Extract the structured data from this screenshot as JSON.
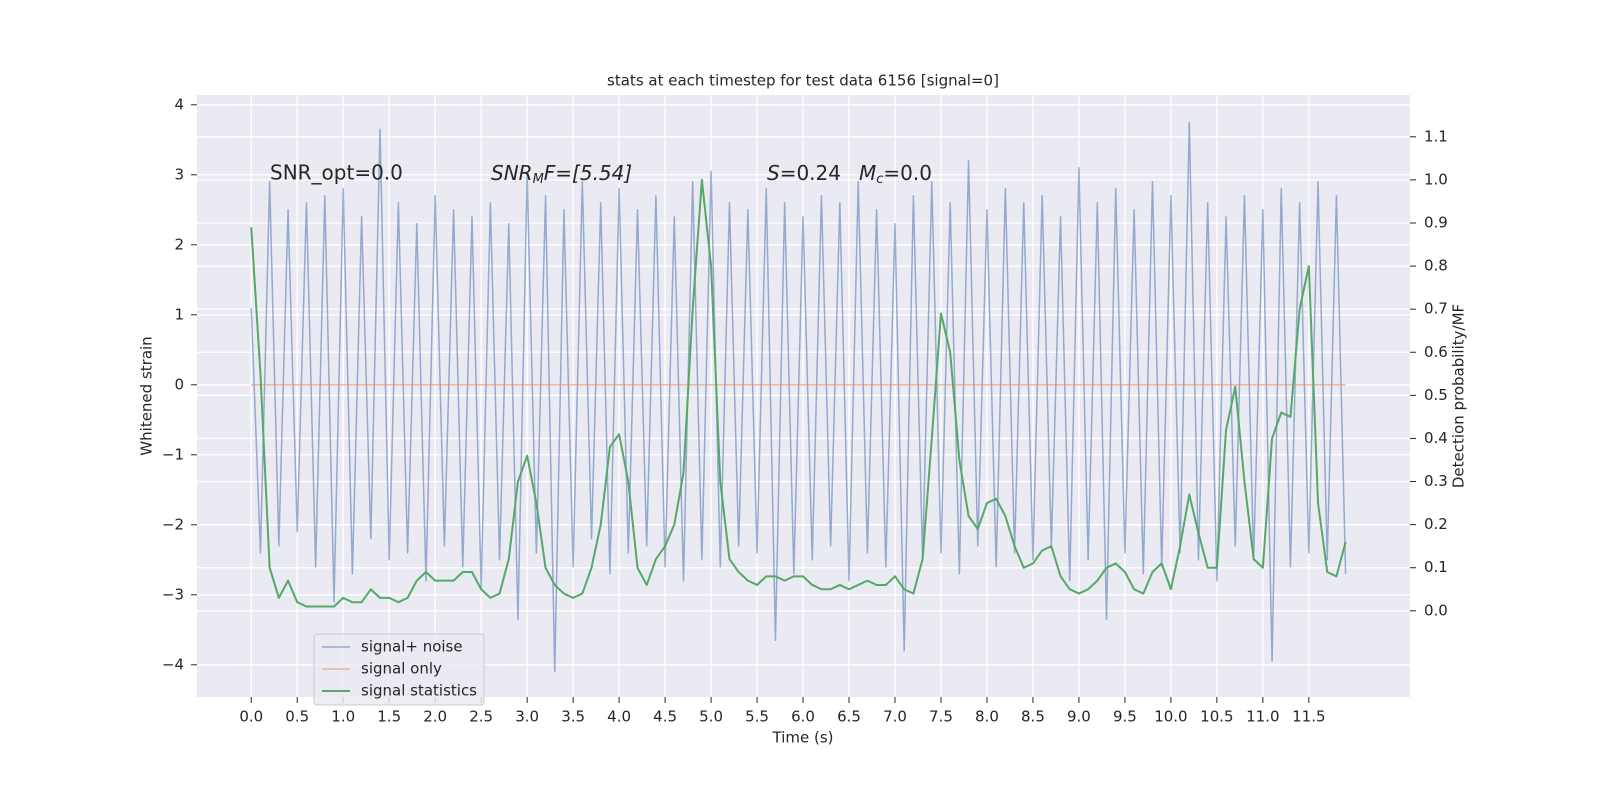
{
  "chart_data": {
    "type": "line",
    "title": "stats at each timestep for test data 6156 [signal=0]",
    "xlabel": "Time (s)",
    "ylabel": "Whitened strain",
    "y2label": "Detection probability/MF",
    "xlim": [
      -0.59,
      12.6
    ],
    "ylim": [
      -4.46,
      4.14
    ],
    "y2lim": [
      -0.2,
      1.197
    ],
    "xticks": [
      {
        "value": 0,
        "label": "0.0"
      },
      0.5,
      {
        "value": 1,
        "label": "1.0"
      },
      1.5,
      {
        "value": 2,
        "label": "2.0"
      },
      2.5,
      {
        "value": 3,
        "label": "3.0"
      },
      3.5,
      {
        "value": 4,
        "label": "4.0"
      },
      4.5,
      {
        "value": 5,
        "label": "5.0"
      },
      5.5,
      {
        "value": 6,
        "label": "6.0"
      },
      6.5,
      {
        "value": 7,
        "label": "7.0"
      },
      7.5,
      {
        "value": 8,
        "label": "8.0"
      },
      8.5,
      {
        "value": 9,
        "label": "9.0"
      },
      9.5,
      {
        "value": 10,
        "label": "10.0"
      },
      10.5,
      {
        "value": 11,
        "label": "11.0"
      },
      11.5
    ],
    "yticks": [
      {
        "value": -4,
        "label": "−4"
      },
      {
        "value": -3,
        "label": "−3"
      },
      {
        "value": -2,
        "label": "−2"
      },
      {
        "value": -1,
        "label": "−1"
      },
      0,
      1,
      2,
      3,
      4
    ],
    "y2ticks": [
      {
        "value": 0,
        "label": "0.0"
      },
      0.1,
      0.2,
      0.3,
      0.4,
      0.5,
      0.6,
      0.7,
      0.8,
      0.9,
      {
        "value": 1,
        "label": "1.0"
      },
      1.1
    ],
    "grid": true,
    "legend_loc": "lower left",
    "annotations": [
      {
        "text": "SNR_opt=0.0"
      },
      {
        "text": "SNR",
        "sub": "M",
        "rest": "F=[5.54]"
      },
      {
        "text": "S",
        "rest": "=0.24",
        "text2": "M",
        "sub": "c",
        "rest2": "=0.0"
      }
    ],
    "series": [
      {
        "name": "signal+ noise",
        "color": "#4c72b0",
        "axis": "y",
        "x": [
          0,
          0.1,
          0.2,
          0.3,
          0.4,
          0.5,
          0.6,
          0.7,
          0.8,
          0.9,
          1,
          1.1,
          1.2,
          1.3,
          1.4,
          1.5,
          1.6,
          1.7,
          1.8,
          1.9,
          2,
          2.1,
          2.2,
          2.3,
          2.4,
          2.5,
          2.6,
          2.7,
          2.8,
          2.9,
          3,
          3.1,
          3.2,
          3.3,
          3.4,
          3.5,
          3.6,
          3.7,
          3.8,
          3.9,
          4,
          4.1,
          4.2,
          4.3,
          4.4,
          4.5,
          4.6,
          4.7,
          4.8,
          4.9,
          5,
          5.1,
          5.2,
          5.3,
          5.4,
          5.5,
          5.6,
          5.7,
          5.8,
          5.9,
          6,
          6.1,
          6.2,
          6.3,
          6.4,
          6.5,
          6.6,
          6.7,
          6.8,
          6.9,
          7,
          7.1,
          7.2,
          7.3,
          7.4,
          7.5,
          7.6,
          7.7,
          7.8,
          7.9,
          8,
          8.1,
          8.2,
          8.3,
          8.4,
          8.5,
          8.6,
          8.7,
          8.8,
          8.9,
          9,
          9.1,
          9.2,
          9.3,
          9.4,
          9.5,
          9.6,
          9.7,
          9.8,
          9.9,
          10,
          10.1,
          10.2,
          10.3,
          10.4,
          10.5,
          10.6,
          10.7,
          10.8,
          10.9,
          11,
          11.1,
          11.2,
          11.3,
          11.4,
          11.5,
          11.6,
          11.7,
          11.8,
          11.9
        ],
        "values": [
          1.1,
          -2.4,
          2.9,
          -2.3,
          2.5,
          -2.1,
          2.6,
          -2.6,
          2.7,
          -3.1,
          2.8,
          -2.7,
          2.4,
          -2.2,
          3.65,
          -2.5,
          2.6,
          -2.4,
          2.3,
          -2.8,
          2.7,
          -2.3,
          2.5,
          -2.6,
          2.4,
          -2.9,
          2.6,
          -2.5,
          2.3,
          -3.35,
          3.0,
          -2.4,
          2.7,
          -4.1,
          2.5,
          -2.6,
          2.9,
          -2.2,
          2.6,
          -2.7,
          2.8,
          -2.4,
          2.5,
          -2.3,
          2.7,
          -2.6,
          2.4,
          -2.8,
          2.9,
          -2.5,
          3.05,
          -2.6,
          2.6,
          -2.3,
          2.5,
          -2.4,
          2.8,
          -3.65,
          2.6,
          -2.7,
          2.4,
          -2.5,
          2.7,
          -2.3,
          2.6,
          -2.8,
          2.9,
          -2.4,
          2.5,
          -2.6,
          2.3,
          -3.8,
          2.7,
          -2.5,
          2.9,
          -2.4,
          2.6,
          -2.7,
          3.2,
          -2.3,
          2.5,
          -2.6,
          2.8,
          -2.4,
          2.6,
          -2.5,
          2.7,
          -2.3,
          2.4,
          -2.8,
          3.1,
          -2.5,
          2.6,
          -3.35,
          2.8,
          -2.4,
          2.5,
          -2.7,
          2.9,
          -2.6,
          2.7,
          -2.4,
          3.75,
          -2.5,
          2.6,
          -2.8,
          2.4,
          -2.3,
          2.7,
          -2.5,
          2.5,
          -3.95,
          2.8,
          -2.6,
          2.6,
          -2.4,
          2.9,
          -2.5,
          2.7,
          -2.7
        ]
      },
      {
        "name": "signal only",
        "color": "#dd8452",
        "axis": "y",
        "x": [
          0,
          11.9
        ],
        "values": [
          0,
          0
        ]
      },
      {
        "name": "signal statistics",
        "color": "#55a868",
        "axis": "y2",
        "x": [
          0,
          0.1,
          0.2,
          0.3,
          0.4,
          0.5,
          0.6,
          0.7,
          0.8,
          0.9,
          1,
          1.1,
          1.2,
          1.3,
          1.4,
          1.5,
          1.6,
          1.7,
          1.8,
          1.9,
          2,
          2.1,
          2.2,
          2.3,
          2.4,
          2.5,
          2.6,
          2.7,
          2.8,
          2.9,
          3,
          3.1,
          3.2,
          3.3,
          3.4,
          3.5,
          3.6,
          3.7,
          3.8,
          3.9,
          4,
          4.1,
          4.2,
          4.3,
          4.4,
          4.5,
          4.6,
          4.7,
          4.8,
          4.9,
          5,
          5.1,
          5.2,
          5.3,
          5.4,
          5.5,
          5.6,
          5.7,
          5.8,
          5.9,
          6,
          6.1,
          6.2,
          6.3,
          6.4,
          6.5,
          6.6,
          6.7,
          6.8,
          6.9,
          7,
          7.1,
          7.2,
          7.3,
          7.4,
          7.5,
          7.6,
          7.7,
          7.8,
          7.9,
          8,
          8.1,
          8.2,
          8.3,
          8.4,
          8.5,
          8.6,
          8.7,
          8.8,
          8.9,
          9,
          9.1,
          9.2,
          9.3,
          9.4,
          9.5,
          9.6,
          9.7,
          9.8,
          9.9,
          10,
          10.1,
          10.2,
          10.3,
          10.4,
          10.5,
          10.6,
          10.7,
          10.8,
          10.9,
          11,
          11.1,
          11.2,
          11.3,
          11.4,
          11.5,
          11.6,
          11.7,
          11.8,
          11.9
        ],
        "values": [
          0.89,
          0.55,
          0.1,
          0.03,
          0.07,
          0.02,
          0.01,
          0.01,
          0.01,
          0.01,
          0.03,
          0.02,
          0.02,
          0.05,
          0.03,
          0.03,
          0.02,
          0.03,
          0.07,
          0.09,
          0.07,
          0.07,
          0.07,
          0.09,
          0.09,
          0.05,
          0.03,
          0.04,
          0.12,
          0.3,
          0.36,
          0.25,
          0.1,
          0.06,
          0.04,
          0.03,
          0.04,
          0.1,
          0.2,
          0.38,
          0.41,
          0.3,
          0.1,
          0.06,
          0.12,
          0.15,
          0.2,
          0.32,
          0.7,
          1.0,
          0.8,
          0.3,
          0.12,
          0.09,
          0.07,
          0.06,
          0.08,
          0.08,
          0.07,
          0.08,
          0.08,
          0.06,
          0.05,
          0.05,
          0.06,
          0.05,
          0.06,
          0.07,
          0.06,
          0.06,
          0.08,
          0.05,
          0.04,
          0.12,
          0.4,
          0.69,
          0.6,
          0.35,
          0.22,
          0.19,
          0.25,
          0.26,
          0.22,
          0.15,
          0.1,
          0.11,
          0.14,
          0.15,
          0.08,
          0.05,
          0.04,
          0.05,
          0.07,
          0.1,
          0.11,
          0.09,
          0.05,
          0.04,
          0.09,
          0.11,
          0.05,
          0.15,
          0.27,
          0.18,
          0.1,
          0.1,
          0.42,
          0.52,
          0.3,
          0.12,
          0.1,
          0.4,
          0.46,
          0.45,
          0.7,
          0.8,
          0.25,
          0.09,
          0.08,
          0.16
        ]
      }
    ]
  }
}
